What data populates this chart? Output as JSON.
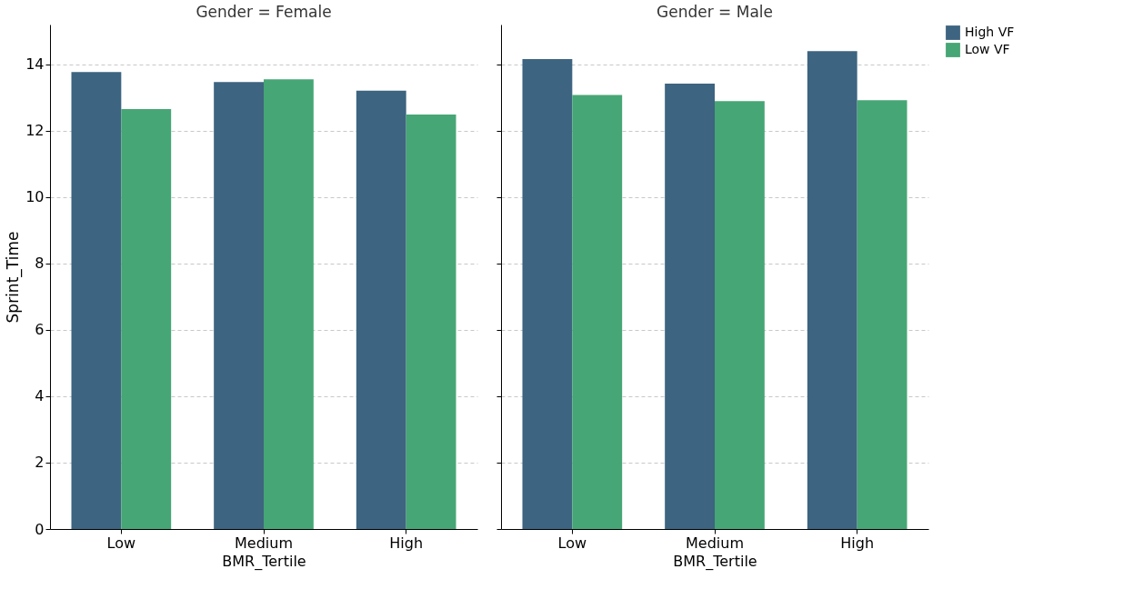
{
  "chart_data": [
    {
      "type": "bar",
      "title": "Gender = Female",
      "xlabel": "BMR_Tertile",
      "ylabel": "Sprint_Time",
      "categories": [
        "Low",
        "Medium",
        "High"
      ],
      "series": [
        {
          "name": "High VF",
          "color": "#3d6480",
          "values": [
            13.77,
            13.47,
            13.21
          ]
        },
        {
          "name": "Low VF",
          "color": "#46a675",
          "values": [
            12.65,
            13.55,
            12.49
          ]
        }
      ],
      "ylim": [
        0,
        15.2
      ],
      "yticks": [
        0,
        2,
        4,
        6,
        8,
        10,
        12,
        14
      ],
      "grid": "y",
      "legend": "right"
    },
    {
      "type": "bar",
      "title": "Gender = Male",
      "xlabel": "BMR_Tertile",
      "categories": [
        "Low",
        "Medium",
        "High"
      ],
      "series": [
        {
          "name": "High VF",
          "color": "#3d6480",
          "values": [
            14.16,
            13.42,
            14.4
          ]
        },
        {
          "name": "Low VF",
          "color": "#46a675",
          "values": [
            13.08,
            12.89,
            12.92
          ]
        }
      ],
      "ylim": [
        0,
        15.2
      ],
      "yticks": [
        0,
        2,
        4,
        6,
        8,
        10,
        12,
        14
      ],
      "grid": "y",
      "legend": "right",
      "tick_labels": "x"
    }
  ]
}
